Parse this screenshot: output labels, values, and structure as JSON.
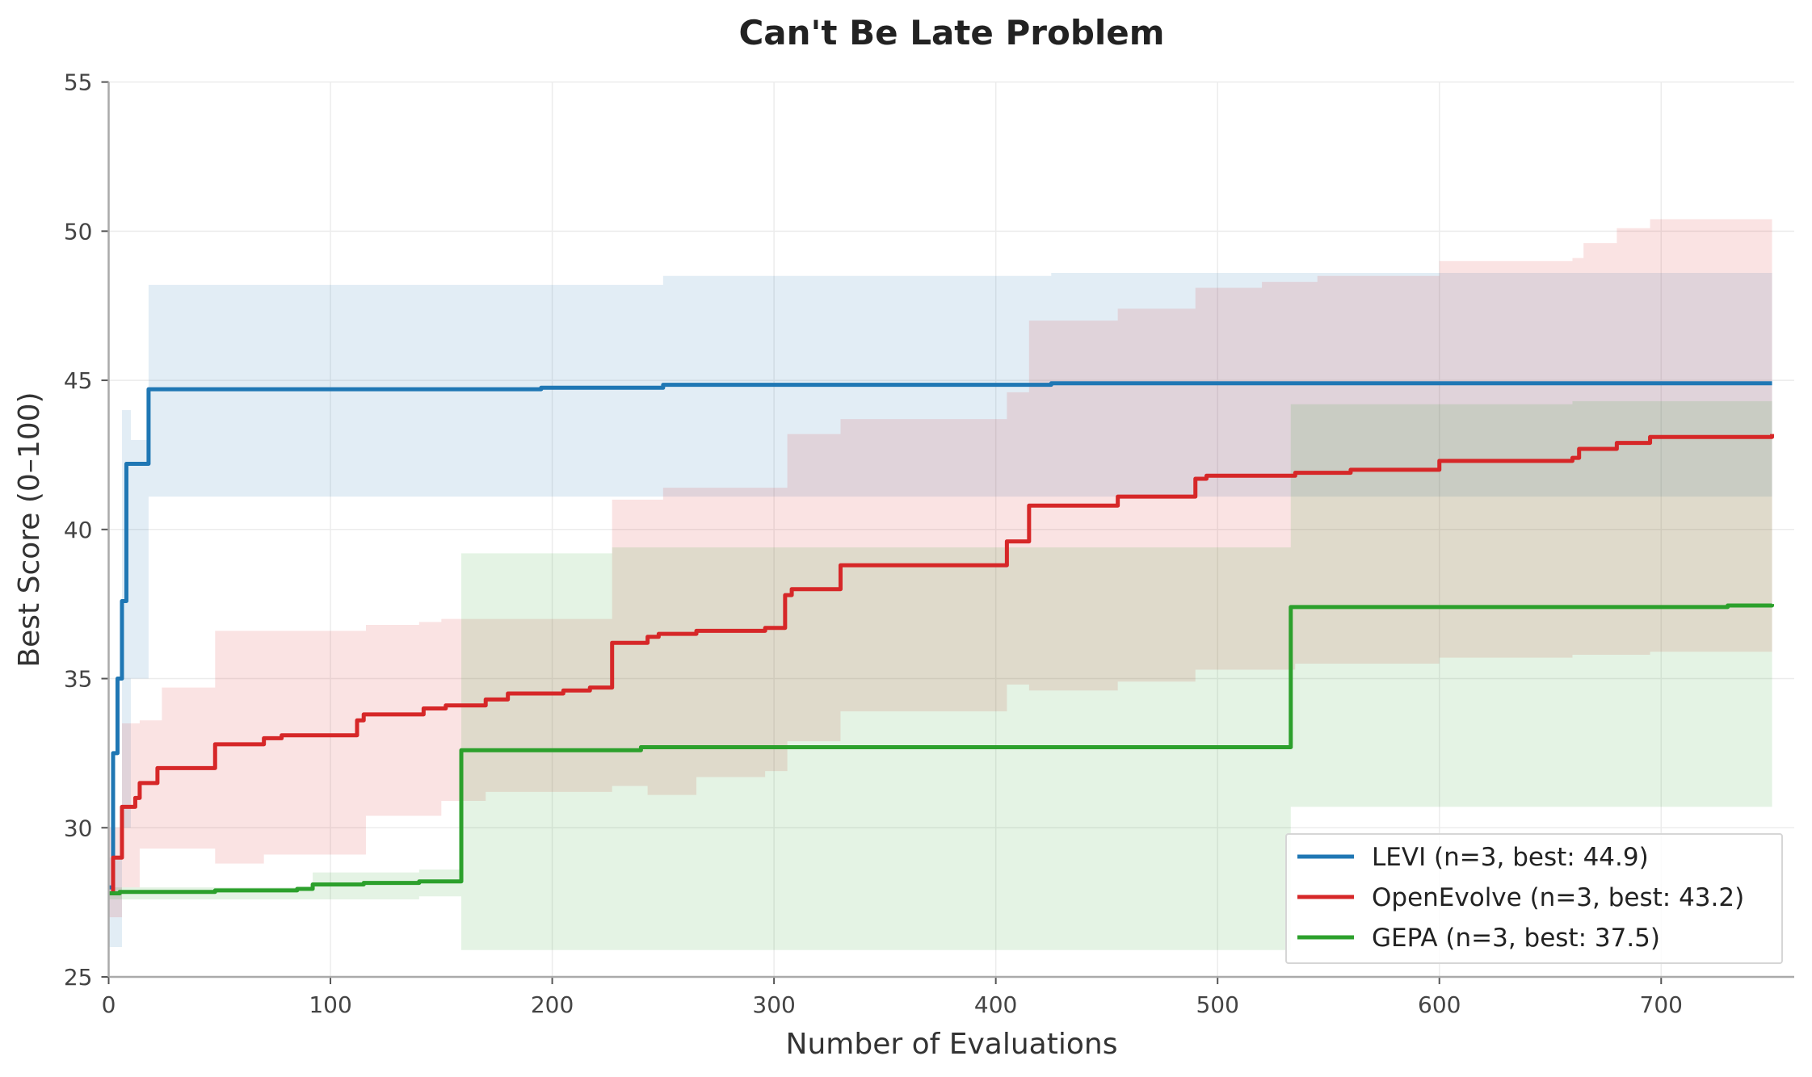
{
  "chart_data": {
    "type": "line",
    "title": "Can't Be Late Problem",
    "xlabel": "Number of Evaluations",
    "ylabel": "Best Score (0–100)",
    "xlim": [
      0,
      760
    ],
    "ylim": [
      25,
      55
    ],
    "xticks": [
      0,
      100,
      200,
      300,
      400,
      500,
      600,
      700
    ],
    "yticks": [
      25,
      30,
      35,
      40,
      45,
      50,
      55
    ],
    "grid": true,
    "legend_position": "bottom-right",
    "step": true,
    "series": [
      {
        "name": "LEVI (n=3, best: 44.9)",
        "color": "#1f77b4",
        "x": [
          0,
          2,
          4,
          6,
          8,
          18,
          195,
          250,
          425,
          750
        ],
        "y": [
          28,
          32.5,
          35,
          37.6,
          42.2,
          44.7,
          44.75,
          44.85,
          44.9,
          44.9
        ],
        "band": {
          "x": [
            0,
            6,
            10,
            18,
            250,
            425,
            750
          ],
          "lower": [
            26,
            30,
            35,
            41.1,
            41.1,
            41.1,
            41.1
          ],
          "upper": [
            29,
            44,
            43,
            48.2,
            48.5,
            48.6,
            48.6
          ]
        }
      },
      {
        "name": "OpenEvolve (n=3, best: 43.2)",
        "color": "#d62728",
        "x": [
          0,
          2,
          6,
          12,
          14,
          22,
          48,
          70,
          78,
          112,
          115,
          142,
          152,
          170,
          180,
          205,
          217,
          227,
          243,
          248,
          265,
          296,
          305,
          308,
          330,
          405,
          415,
          455,
          490,
          495,
          535,
          560,
          600,
          660,
          663,
          680,
          695,
          750
        ],
        "y": [
          27.8,
          29,
          30.7,
          31,
          31.5,
          32,
          32.8,
          33,
          33.1,
          33.6,
          33.8,
          34,
          34.1,
          34.3,
          34.5,
          34.6,
          34.7,
          36.2,
          36.4,
          36.5,
          36.6,
          36.7,
          37.8,
          38,
          38.8,
          39.6,
          40.8,
          41.1,
          41.7,
          41.8,
          41.9,
          42,
          42.3,
          42.4,
          42.7,
          42.9,
          43.1,
          43.2
        ],
        "band": {
          "x": [
            0,
            6,
            14,
            24,
            48,
            70,
            116,
            140,
            150,
            170,
            227,
            243,
            250,
            265,
            296,
            306,
            330,
            405,
            415,
            455,
            490,
            520,
            535,
            545,
            600,
            660,
            665,
            680,
            695,
            750
          ],
          "lower": [
            27,
            28,
            29.3,
            29.3,
            28.8,
            29.1,
            30.4,
            30.4,
            30.9,
            31.2,
            31.4,
            31.1,
            31.1,
            31.7,
            31.9,
            32.9,
            33.9,
            34.8,
            34.6,
            34.9,
            35.3,
            35.3,
            35.5,
            35.5,
            35.7,
            35.8,
            35.8,
            35.8,
            35.9,
            35.9
          ],
          "upper": [
            30,
            33.5,
            33.6,
            34.7,
            36.6,
            36.6,
            36.8,
            36.9,
            37,
            37,
            41,
            41,
            41.4,
            41.4,
            41.4,
            43.2,
            43.7,
            44.6,
            47,
            47.4,
            48.1,
            48.3,
            48.3,
            48.5,
            49,
            49.1,
            49.6,
            50.1,
            50.4,
            50.4
          ]
        }
      },
      {
        "name": "GEPA (n=3, best: 37.5)",
        "color": "#2ca02c",
        "x": [
          0,
          5,
          48,
          85,
          92,
          115,
          140,
          159,
          240,
          533,
          730,
          750
        ],
        "y": [
          27.8,
          27.85,
          27.9,
          27.95,
          28.1,
          28.15,
          28.2,
          32.6,
          32.7,
          37.4,
          37.45,
          37.5
        ],
        "band": {
          "x": [
            0,
            92,
            140,
            159,
            227,
            533,
            660,
            750
          ],
          "lower": [
            27.6,
            27.6,
            27.7,
            25.9,
            25.9,
            30.7,
            30.7,
            30.7
          ],
          "upper": [
            28,
            28.5,
            28.6,
            39.2,
            39.4,
            44.2,
            44.3,
            44.4
          ]
        }
      }
    ]
  }
}
